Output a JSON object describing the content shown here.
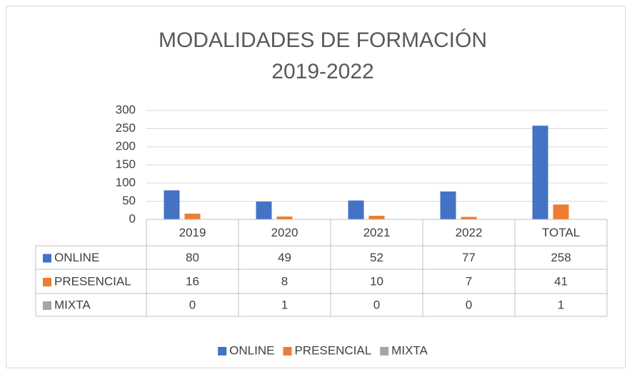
{
  "chart_data": {
    "type": "bar",
    "title": [
      "MODALIDADES DE FORMACIÓN",
      "2019-2022"
    ],
    "categories": [
      "2019",
      "2020",
      "2021",
      "2022",
      "TOTAL"
    ],
    "series": [
      {
        "name": "ONLINE",
        "color": "#4472c4",
        "values": [
          80,
          49,
          52,
          77,
          258
        ]
      },
      {
        "name": "PRESENCIAL",
        "color": "#ed7d31",
        "values": [
          16,
          8,
          10,
          7,
          41
        ]
      },
      {
        "name": "MIXTA",
        "color": "#a5a5a5",
        "values": [
          0,
          1,
          0,
          0,
          1
        ]
      }
    ],
    "ylim": [
      0,
      300
    ],
    "yticks": [
      0,
      50,
      100,
      150,
      200,
      250,
      300
    ],
    "grid": true,
    "data_table": true,
    "legend": "bottom"
  }
}
